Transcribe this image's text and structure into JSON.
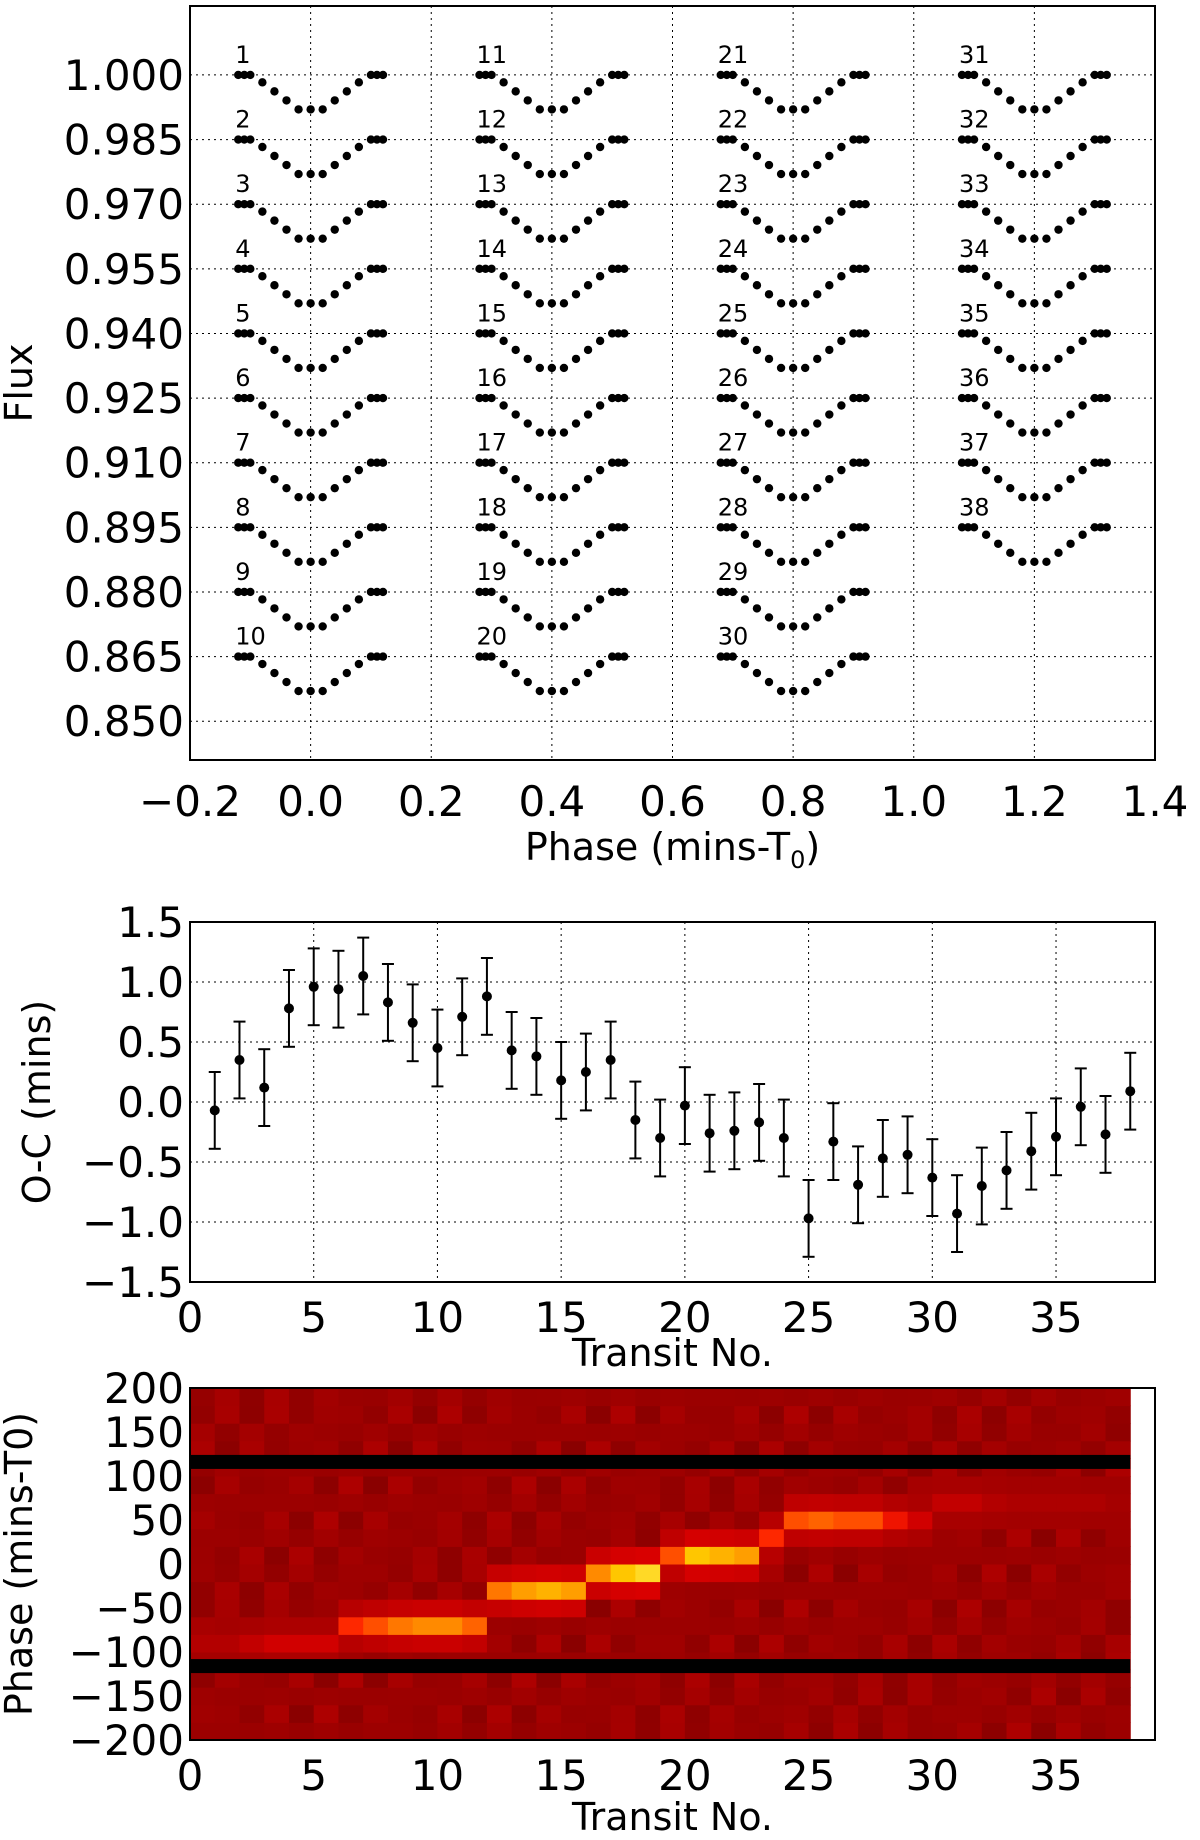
{
  "chart_data": [
    {
      "type": "scatter",
      "xlabel": "Phase (mins-T",
      "xlabel_sub": "0",
      "xlabel_close": ")",
      "ylabel": "Flux",
      "xlim": [
        -0.2,
        1.4
      ],
      "ylim": [
        0.841,
        1.016
      ],
      "xticks": [
        -0.2,
        0.0,
        0.2,
        0.4,
        0.6,
        0.8,
        1.0,
        1.2,
        1.4
      ],
      "xtick_labels": [
        "−0.2",
        "0.0",
        "0.2",
        "0.4",
        "0.6",
        "0.8",
        "1.0",
        "1.2",
        "1.4"
      ],
      "yticks": [
        1.0,
        0.985,
        0.97,
        0.955,
        0.94,
        0.925,
        0.91,
        0.895,
        0.88,
        0.865,
        0.85
      ],
      "ytick_labels": [
        "1.000",
        "0.985",
        "0.970",
        "0.955",
        "0.940",
        "0.925",
        "0.910",
        "0.895",
        "0.880",
        "0.865",
        "0.850"
      ],
      "grid": true,
      "phase_x": [
        -0.12,
        -0.11,
        -0.1,
        -0.08,
        -0.06,
        -0.04,
        -0.02,
        0.0,
        0.02,
        0.04,
        0.06,
        0.08,
        0.1,
        0.11,
        0.12
      ],
      "columns": [
        {
          "x_offset": 0.0,
          "transits": [
            1,
            2,
            3,
            4,
            5,
            6,
            7,
            8,
            9,
            10
          ]
        },
        {
          "x_offset": 0.4,
          "transits": [
            11,
            12,
            13,
            14,
            15,
            16,
            17,
            18,
            19,
            20
          ]
        },
        {
          "x_offset": 0.8,
          "transits": [
            21,
            22,
            23,
            24,
            25,
            26,
            27,
            28,
            29,
            30
          ]
        },
        {
          "x_offset": 1.2,
          "transits": [
            31,
            32,
            33,
            34,
            35,
            36,
            37,
            38
          ]
        }
      ],
      "row_flux_baseline": [
        1.0,
        0.985,
        0.97,
        0.955,
        0.94,
        0.925,
        0.91,
        0.895,
        0.88,
        0.865
      ],
      "transit_depth": 0.008,
      "labels": [
        "1",
        "2",
        "3",
        "4",
        "5",
        "6",
        "7",
        "8",
        "9",
        "10",
        "11",
        "12",
        "13",
        "14",
        "15",
        "16",
        "17",
        "18",
        "19",
        "20",
        "21",
        "22",
        "23",
        "24",
        "25",
        "26",
        "27",
        "28",
        "29",
        "30",
        "31",
        "32",
        "33",
        "34",
        "35",
        "36",
        "37",
        "38"
      ]
    },
    {
      "type": "scatter",
      "xlabel": "Transit No.",
      "ylabel": "O-C (mins)",
      "xlim": [
        0,
        39
      ],
      "ylim": [
        -1.5,
        1.5
      ],
      "xticks": [
        0,
        5,
        10,
        15,
        20,
        25,
        30,
        35
      ],
      "xtick_labels": [
        "0",
        "5",
        "10",
        "15",
        "20",
        "25",
        "30",
        "35"
      ],
      "yticks": [
        1.5,
        1.0,
        0.5,
        0.0,
        -0.5,
        -1.0,
        -1.5
      ],
      "ytick_labels": [
        "1.5",
        "1.0",
        "0.5",
        "0.0",
        "−0.5",
        "−1.0",
        "−1.5"
      ],
      "grid": true,
      "error": 0.32,
      "x": [
        1,
        2,
        3,
        4,
        5,
        6,
        7,
        8,
        9,
        10,
        11,
        12,
        13,
        14,
        15,
        16,
        17,
        18,
        19,
        20,
        21,
        22,
        23,
        24,
        25,
        26,
        27,
        28,
        29,
        30,
        31,
        32,
        33,
        34,
        35,
        36,
        37,
        38
      ],
      "y": [
        -0.07,
        0.35,
        0.12,
        0.78,
        0.96,
        0.94,
        1.05,
        0.83,
        0.66,
        0.45,
        0.71,
        0.88,
        0.43,
        0.38,
        0.18,
        0.25,
        0.35,
        -0.15,
        -0.3,
        -0.03,
        -0.26,
        -0.24,
        -0.17,
        -0.3,
        -0.97,
        -0.33,
        -0.69,
        -0.47,
        -0.44,
        -0.63,
        -0.93,
        -0.7,
        -0.57,
        -0.41,
        -0.29,
        -0.04,
        -0.27,
        0.09
      ]
    },
    {
      "type": "heatmap",
      "xlabel": "Transit No.",
      "ylabel": "Phase (mins-T0)",
      "xlim": [
        0,
        39
      ],
      "ylim": [
        -200,
        200
      ],
      "xticks": [
        0,
        5,
        10,
        15,
        20,
        25,
        30,
        35
      ],
      "xtick_labels": [
        "0",
        "5",
        "10",
        "15",
        "20",
        "25",
        "30",
        "35"
      ],
      "yticks": [
        200,
        150,
        100,
        50,
        0,
        -50,
        -100,
        -150,
        -200
      ],
      "ytick_labels": [
        "200",
        "150",
        "100",
        "50",
        "0",
        "−50",
        "−100",
        "−150",
        "−200"
      ],
      "grid": false,
      "n_transits": 38,
      "phase_bin_edges": [
        -200,
        -180,
        -160,
        -140,
        -120,
        -100,
        -80,
        -60,
        -40,
        -20,
        0,
        20,
        40,
        60,
        80,
        100,
        120,
        140,
        160,
        180,
        200
      ],
      "dark_bands_phase": [
        116,
        -116
      ],
      "peak_phase_by_transit": [
        -90,
        -90,
        -90,
        -90,
        -90,
        -90,
        -70,
        -70,
        -70,
        -70,
        -70,
        -70,
        -30,
        -30,
        -30,
        -30,
        -10,
        -10,
        -10,
        10,
        10,
        10,
        10,
        30,
        50,
        50,
        50,
        50,
        50,
        50,
        70,
        70,
        70,
        70,
        70,
        70,
        70,
        70
      ],
      "peak_intensity_by_transit": [
        0.2,
        0.2,
        0.25,
        0.3,
        0.3,
        0.3,
        0.45,
        0.55,
        0.65,
        0.7,
        0.7,
        0.6,
        0.65,
        0.75,
        0.8,
        0.75,
        0.7,
        0.85,
        0.9,
        0.55,
        0.85,
        0.8,
        0.75,
        0.45,
        0.55,
        0.6,
        0.55,
        0.55,
        0.4,
        0.3,
        0.25,
        0.25,
        0.2,
        0.18,
        0.18,
        0.18,
        0.15,
        0.15
      ]
    }
  ]
}
